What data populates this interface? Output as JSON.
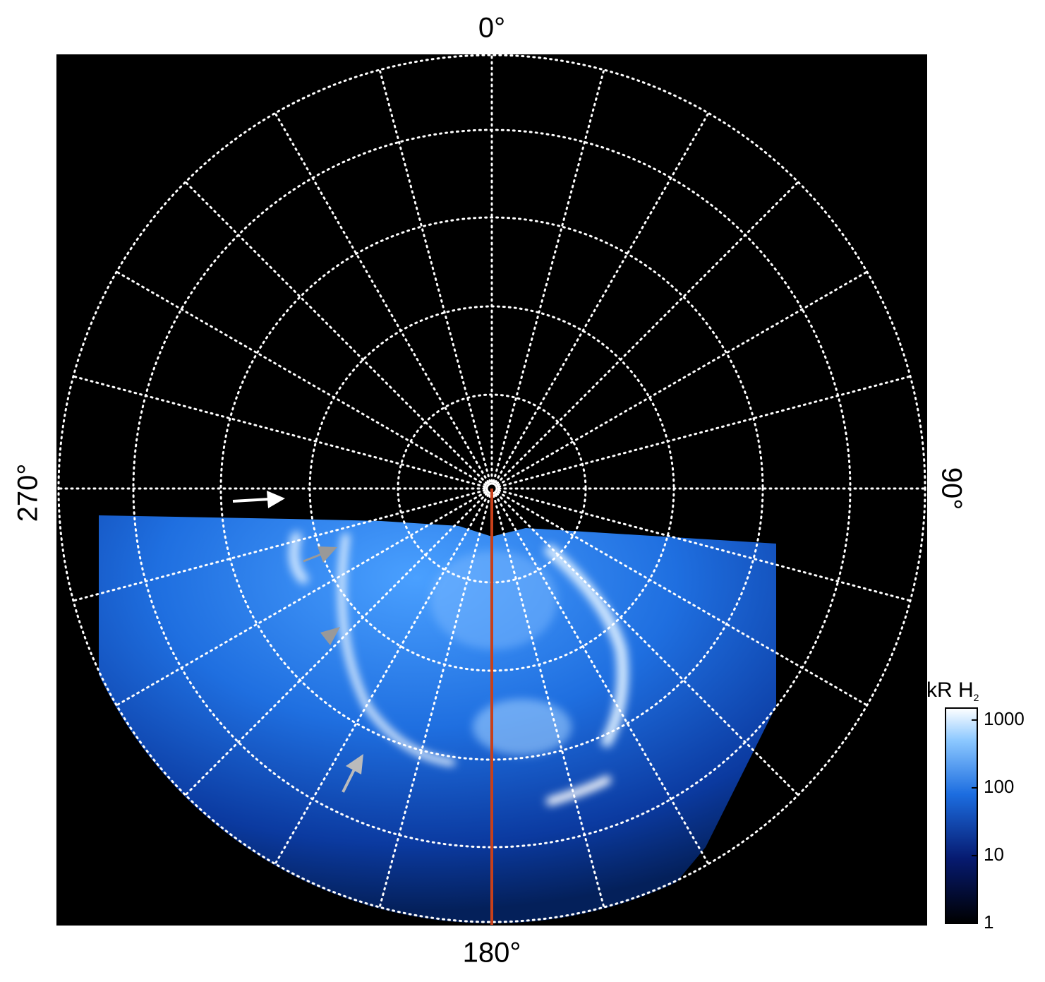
{
  "angle_labels": {
    "top": "0°",
    "right": "90°",
    "bottom": "180°",
    "left": "270°"
  },
  "colorbar": {
    "title": "kR H",
    "title_subscript": "2",
    "log": true,
    "lim": [
      1,
      1500
    ],
    "ticks": [
      1,
      10,
      100,
      1000
    ]
  }
}
